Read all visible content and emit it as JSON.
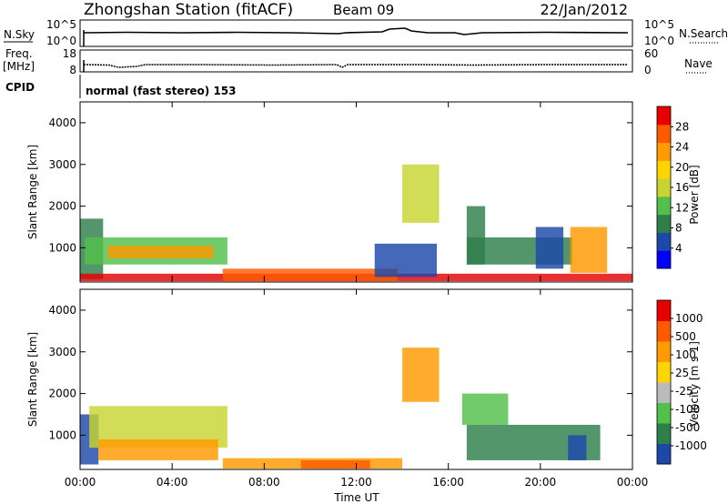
{
  "header": {
    "title": "Zhongshan Station (fitACF)",
    "beam": "Beam 09",
    "date": "22/Jan/2012"
  },
  "top_panels": {
    "nsky_label": "N.Sky",
    "nsky_ticks": [
      "10^5",
      "10^0"
    ],
    "nsearch_label": "N.Search",
    "nsearch_ticks": [
      "10^5",
      "10^0"
    ],
    "freq_label": "Freq.",
    "freq_unit": "[MHz]",
    "freq_ticks": [
      "18",
      "8"
    ],
    "nave_label": "Nave",
    "nave_ticks": [
      "60",
      "0"
    ],
    "cpid_label": "CPID",
    "cpid_text": "normal (fast stereo) 153"
  },
  "chart_data": [
    {
      "type": "heatmap",
      "name": "power",
      "xlabel": "",
      "ylabel": "Slant Range [km]",
      "x_range_hours": [
        0,
        24
      ],
      "ylim": [
        180,
        4500
      ],
      "yticks": [
        "1000",
        "2000",
        "3000",
        "4000"
      ],
      "colorbar": {
        "label": "Power [dB]",
        "ticks": [
          "28",
          "24",
          "20",
          "16",
          "12",
          "8",
          "4"
        ],
        "colors": [
          "#0000ff",
          "#1c48a8",
          "#2e7f4a",
          "#52c04a",
          "#c8d431",
          "#ffd400",
          "#ff9a00",
          "#ff5a00",
          "#e60000"
        ]
      },
      "echo_regions": [
        {
          "t0": 0.0,
          "t1": 1.0,
          "r0": 250,
          "r1": 1700,
          "c": "#2e7f4a"
        },
        {
          "t0": 0.2,
          "t1": 6.4,
          "r0": 600,
          "r1": 1250,
          "c": "#52c04a"
        },
        {
          "t0": 1.2,
          "t1": 5.8,
          "r0": 750,
          "r1": 1050,
          "c": "#ff9a00"
        },
        {
          "t0": 0.0,
          "t1": 24.0,
          "r0": 200,
          "r1": 380,
          "c": "#e60000"
        },
        {
          "t0": 6.2,
          "t1": 13.8,
          "r0": 200,
          "r1": 500,
          "c": "#ff5a00"
        },
        {
          "t0": 12.8,
          "t1": 15.5,
          "r0": 300,
          "r1": 1100,
          "c": "#1c48a8"
        },
        {
          "t0": 14.0,
          "t1": 15.6,
          "r0": 1600,
          "r1": 3000,
          "c": "#c8d431"
        },
        {
          "t0": 16.8,
          "t1": 17.6,
          "r0": 600,
          "r1": 2000,
          "c": "#2e7f4a"
        },
        {
          "t0": 16.8,
          "t1": 21.4,
          "r0": 600,
          "r1": 1250,
          "c": "#2e7f4a"
        },
        {
          "t0": 21.3,
          "t1": 22.9,
          "r0": 400,
          "r1": 1500,
          "c": "#ff9a00"
        },
        {
          "t0": 19.8,
          "t1": 21.0,
          "r0": 500,
          "r1": 1500,
          "c": "#1c48a8"
        }
      ]
    },
    {
      "type": "heatmap",
      "name": "velocity",
      "xlabel": "Time UT",
      "ylabel": "Slant Range [km]",
      "x_range_hours": [
        0,
        24
      ],
      "ylim": [
        180,
        4500
      ],
      "xticks": [
        "00:00",
        "04:00",
        "08:00",
        "12:00",
        "16:00",
        "20:00",
        "00:00"
      ],
      "yticks": [
        "1000",
        "2000",
        "3000",
        "4000"
      ],
      "colorbar": {
        "label": "Velocity [m s-1]",
        "ticks": [
          "1000",
          "500",
          "100",
          "25",
          "-25",
          "-100",
          "-500",
          "-1000"
        ],
        "colors": [
          "#1c48a8",
          "#2e7f4a",
          "#52c04a",
          "#bbbbbb",
          "#ffd400",
          "#ff9a00",
          "#ff5a00",
          "#e60000"
        ]
      },
      "echo_regions": [
        {
          "t0": 0.0,
          "t1": 0.8,
          "r0": 300,
          "r1": 1500,
          "c": "#1c48a8"
        },
        {
          "t0": 0.4,
          "t1": 6.4,
          "r0": 700,
          "r1": 1700,
          "c": "#c8d431"
        },
        {
          "t0": 0.8,
          "t1": 6.0,
          "r0": 400,
          "r1": 900,
          "c": "#ff9a00"
        },
        {
          "t0": 6.2,
          "t1": 14.0,
          "r0": 200,
          "r1": 450,
          "c": "#ff9a00"
        },
        {
          "t0": 9.6,
          "t1": 12.6,
          "r0": 200,
          "r1": 400,
          "c": "#ff5a00"
        },
        {
          "t0": 14.0,
          "t1": 15.6,
          "r0": 1800,
          "r1": 3100,
          "c": "#ff9a00"
        },
        {
          "t0": 16.8,
          "t1": 22.6,
          "r0": 400,
          "r1": 1250,
          "c": "#2e7f4a"
        },
        {
          "t0": 16.6,
          "t1": 18.6,
          "r0": 1250,
          "r1": 2000,
          "c": "#52c04a"
        },
        {
          "t0": 21.2,
          "t1": 22.0,
          "r0": 400,
          "r1": 1000,
          "c": "#1c48a8"
        }
      ]
    }
  ]
}
